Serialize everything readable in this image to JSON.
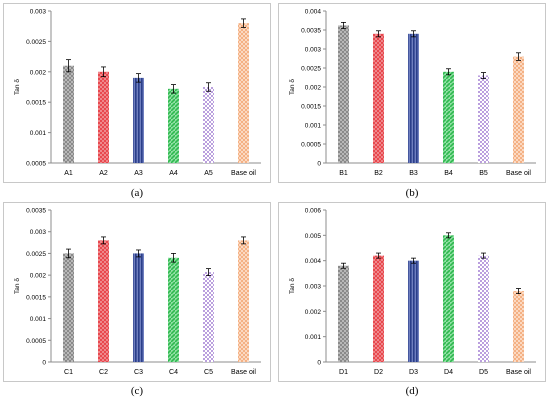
{
  "colors": {
    "gray": "#8a8a8a",
    "red": "#e8484e",
    "navy": "#2b3f8a",
    "green": "#2fb84f",
    "purple": "#8a5bc7",
    "peach": "#f4b184"
  },
  "chart_data": [
    {
      "type": "bar",
      "caption": "(a)",
      "ylabel": "Tan δ",
      "categories": [
        "A1",
        "A2",
        "A3",
        "A4",
        "A5",
        "Base oil"
      ],
      "values": [
        0.0021,
        0.002,
        0.0019,
        0.00172,
        0.00175,
        0.0028
      ],
      "errors": [
        0.0001,
        8e-05,
        7e-05,
        7e-05,
        7e-05,
        7e-05
      ],
      "ylim": [
        0.0005,
        0.003
      ],
      "yticks": [
        0.0005,
        0.001,
        0.0015,
        0.002,
        0.0025,
        0.003
      ],
      "ytick_labels": [
        "0.0005",
        "0.001",
        "0.0015",
        "0.002",
        "0.0025",
        "0.003"
      ],
      "pattern_colors": [
        "gray",
        "red",
        "navy",
        "green",
        "purple",
        "peach"
      ]
    },
    {
      "type": "bar",
      "caption": "(b)",
      "ylabel": "Tan δ",
      "categories": [
        "B1",
        "B2",
        "B3",
        "B4",
        "B5",
        "Base oil"
      ],
      "values": [
        0.00362,
        0.0034,
        0.0034,
        0.0024,
        0.0023,
        0.0028
      ],
      "errors": [
        8e-05,
        8e-05,
        8e-05,
        8e-05,
        8e-05,
        0.0001
      ],
      "ylim": [
        0,
        0.004
      ],
      "yticks": [
        0,
        0.0005,
        0.001,
        0.0015,
        0.002,
        0.0025,
        0.003,
        0.0035,
        0.004
      ],
      "ytick_labels": [
        "0",
        "0.0005",
        "0.001",
        "0.0015",
        "0.002",
        "0.0025",
        "0.003",
        "0.0035",
        "0.004"
      ],
      "pattern_colors": [
        "gray",
        "red",
        "navy",
        "green",
        "purple",
        "peach"
      ]
    },
    {
      "type": "bar",
      "caption": "(c)",
      "ylabel": "Tan δ",
      "categories": [
        "C1",
        "C2",
        "C3",
        "C4",
        "C5",
        "Base oil"
      ],
      "values": [
        0.0025,
        0.0028,
        0.0025,
        0.0024,
        0.00207,
        0.0028
      ],
      "errors": [
        0.0001,
        8e-05,
        8e-05,
        0.0001,
        8e-05,
        8e-05
      ],
      "ylim": [
        0,
        0.0035
      ],
      "yticks": [
        0,
        0.0005,
        0.001,
        0.0015,
        0.002,
        0.0025,
        0.003,
        0.0035
      ],
      "ytick_labels": [
        "0",
        "0.0005",
        "0.001",
        "0.0015",
        "0.002",
        "0.0025",
        "0.003",
        "0.0035"
      ],
      "pattern_colors": [
        "gray",
        "red",
        "navy",
        "green",
        "purple",
        "peach"
      ]
    },
    {
      "type": "bar",
      "caption": "(d)",
      "ylabel": "Tan δ",
      "categories": [
        "D1",
        "D2",
        "D3",
        "D4",
        "D5",
        "Base oil"
      ],
      "values": [
        0.0038,
        0.0042,
        0.004,
        0.005,
        0.0042,
        0.0028
      ],
      "errors": [
        0.0001,
        0.0001,
        0.0001,
        0.0001,
        0.0001,
        0.0001
      ],
      "ylim": [
        0,
        0.006
      ],
      "yticks": [
        0,
        0.001,
        0.002,
        0.003,
        0.004,
        0.005,
        0.006
      ],
      "ytick_labels": [
        "0",
        "0.001",
        "0.002",
        "0.003",
        "0.004",
        "0.005",
        "0.006"
      ],
      "pattern_colors": [
        "gray",
        "red",
        "navy",
        "green",
        "purple",
        "peach"
      ]
    }
  ]
}
